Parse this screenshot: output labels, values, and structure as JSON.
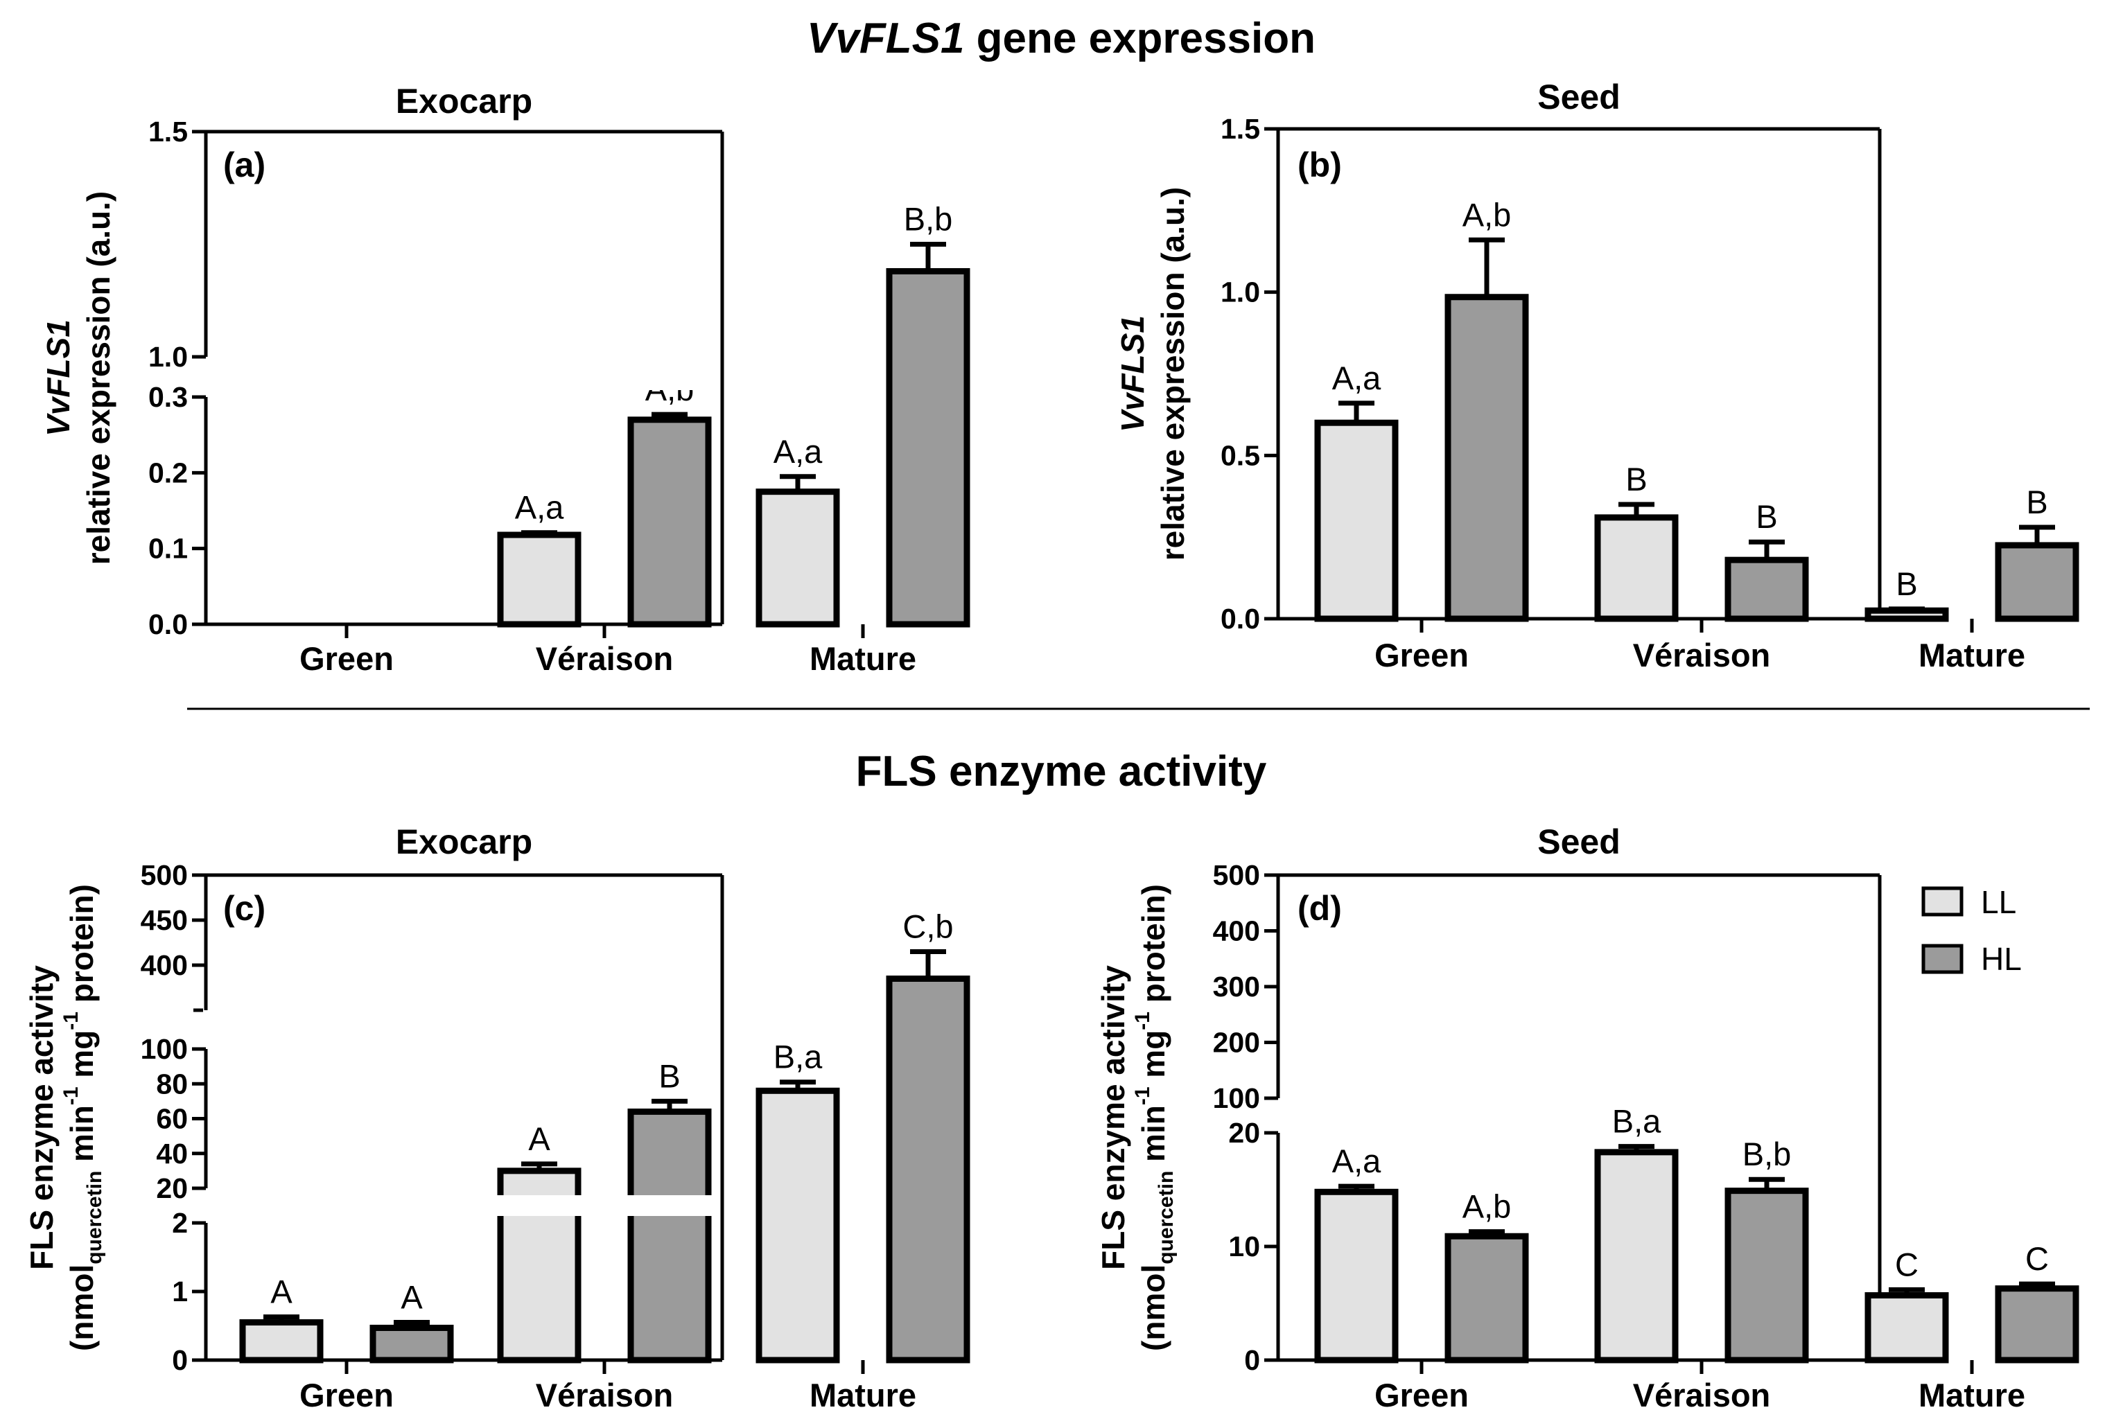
{
  "sections": {
    "gene_title_italic": "VvFLS1",
    "gene_title_rest": " gene expression",
    "enzyme_title": "FLS enzyme activity"
  },
  "legend": {
    "ll": "LL",
    "hl": "HL"
  },
  "colors": {
    "LL": "#e2e2e2",
    "HL": "#9b9b9b",
    "axis": "#000000"
  },
  "chart_data": [
    {
      "id": "a",
      "type": "bar",
      "panel_label": "(a)",
      "title": "Exocarp",
      "ylabel_italic": "VvFLS1",
      "ylabel": "relative expression (a.u.)",
      "categories": [
        "Green",
        "Véraison",
        "Mature"
      ],
      "series": [
        {
          "name": "LL",
          "values": [
            null,
            0.118,
            0.175
          ],
          "errors": [
            null,
            0.003,
            0.02
          ],
          "labels": [
            "",
            "A,a",
            "A,a"
          ]
        },
        {
          "name": "HL",
          "values": [
            null,
            0.27,
            1.19
          ],
          "errors": [
            null,
            0.007,
            0.06
          ],
          "labels": [
            "",
            "A,b",
            "B,b"
          ]
        }
      ],
      "y_ticks": [
        "0.0",
        "0.1",
        "0.2",
        "0.3",
        "1.0",
        "1.5"
      ],
      "y_segments": [
        {
          "range": [
            0,
            0.3
          ]
        },
        {
          "range": [
            1.0,
            1.5
          ]
        }
      ]
    },
    {
      "id": "b",
      "type": "bar",
      "panel_label": "(b)",
      "title": "Seed",
      "ylabel_italic": "VvFLS1",
      "ylabel": "relative expression (a.u.)",
      "categories": [
        "Green",
        "Véraison",
        "Mature"
      ],
      "series": [
        {
          "name": "LL",
          "values": [
            0.6,
            0.31,
            0.025
          ],
          "errors": [
            0.06,
            0.04,
            0.005
          ],
          "labels": [
            "A,a",
            "B",
            "B"
          ]
        },
        {
          "name": "HL",
          "values": [
            0.985,
            0.18,
            0.225
          ],
          "errors": [
            0.175,
            0.055,
            0.055
          ],
          "labels": [
            "A,b",
            "B",
            "B"
          ]
        }
      ],
      "y_ticks": [
        "0.0",
        "0.5",
        "1.0",
        "1.5"
      ],
      "y_segments": [
        {
          "range": [
            0,
            1.5
          ]
        }
      ]
    },
    {
      "id": "c",
      "type": "bar",
      "panel_label": "(c)",
      "title": "Exocarp",
      "ylabel": "FLS enzyme activity",
      "ylabel2_parts": [
        "(nmol",
        "quercetin",
        " min",
        "-1",
        " mg",
        "-1",
        " protein)"
      ],
      "categories": [
        "Green",
        "Véraison",
        "Mature"
      ],
      "series": [
        {
          "name": "LL",
          "values": [
            0.55,
            30,
            76
          ],
          "errors": [
            0.08,
            4,
            5
          ],
          "labels": [
            "A",
            "A",
            "B,a"
          ]
        },
        {
          "name": "HL",
          "values": [
            0.47,
            64,
            385
          ],
          "errors": [
            0.08,
            6,
            30
          ],
          "labels": [
            "A",
            "B",
            "C,b"
          ]
        }
      ],
      "y_ticks": [
        "0",
        "1",
        "2",
        "20",
        "40",
        "60",
        "80",
        "100",
        "400",
        "450",
        "500"
      ],
      "y_segments": [
        {
          "range": [
            0,
            2
          ]
        },
        {
          "range": [
            20,
            100
          ]
        },
        {
          "range": [
            350,
            500
          ]
        }
      ]
    },
    {
      "id": "d",
      "type": "bar",
      "panel_label": "(d)",
      "title": "Seed",
      "ylabel": "FLS enzyme activity",
      "ylabel2_parts": [
        "(nmol",
        "quercetin",
        " min",
        "-1",
        " mg",
        "-1",
        " protein)"
      ],
      "categories": [
        "Green",
        "Véraison",
        "Mature"
      ],
      "series": [
        {
          "name": "LL",
          "values": [
            14.8,
            18.3,
            5.7
          ],
          "errors": [
            0.5,
            0.5,
            0.5
          ],
          "labels": [
            "A,a",
            "B,a",
            "C"
          ]
        },
        {
          "name": "HL",
          "values": [
            10.9,
            14.9,
            6.3
          ],
          "errors": [
            0.4,
            1.0,
            0.4
          ],
          "labels": [
            "A,b",
            "B,b",
            "C"
          ]
        }
      ],
      "y_ticks": [
        "0",
        "10",
        "20",
        "100",
        "200",
        "300",
        "400",
        "500"
      ],
      "y_segments": [
        {
          "range": [
            0,
            20
          ]
        },
        {
          "range": [
            100,
            500
          ]
        }
      ]
    }
  ]
}
